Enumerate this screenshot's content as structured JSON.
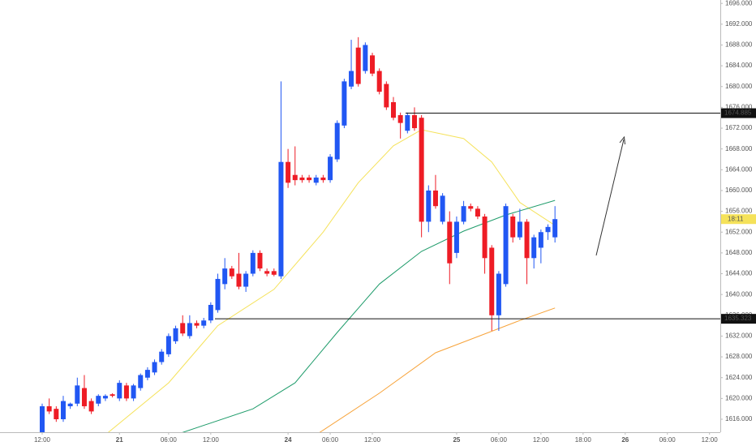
{
  "chart_data": {
    "type": "candlestick",
    "up_color": "#2157f3",
    "down_color": "#ee1c25",
    "open": [
      1612,
      1618.5,
      1618,
      1616,
      1618.5,
      1619,
      1622,
      1619.5,
      1619,
      1620,
      1620.8,
      1620,
      1622.5,
      1620,
      1622,
      1624,
      1625,
      1627,
      1628.5,
      1631,
      1634.5,
      1632,
      1634.5,
      1634,
      1635,
      1637,
      1642,
      1645,
      1644,
      1641.5,
      1644,
      1648,
      1644.5,
      1644.5,
      1643.5,
      1665.5,
      1663,
      1662.5,
      1662.5,
      1661.5,
      1662.5,
      1662,
      1666,
      1672.5,
      1680,
      1687.5,
      1683,
      1686,
      1683,
      1680.5,
      1677,
      1674.5,
      1671.5,
      1674.5,
      1674,
      1654,
      1660,
      1654,
      1654,
      1648,
      1654,
      1657,
      1656.5,
      1655,
      1649,
      1636,
      1642,
      1655,
      1651,
      1654,
      1647,
      1649,
      1652,
      1651
    ],
    "high": [
      1619,
      1620,
      1618.5,
      1620.5,
      1619.2,
      1624,
      1624.5,
      1620,
      1620.8,
      1620.8,
      1621,
      1623.5,
      1623,
      1622.8,
      1624.8,
      1626,
      1627.5,
      1629.5,
      1632.5,
      1634,
      1636,
      1636,
      1635,
      1635.5,
      1638.5,
      1644,
      1647,
      1645.5,
      1648,
      1644.5,
      1648.5,
      1648.5,
      1645,
      1645,
      1681,
      1668,
      1668.5,
      1663,
      1663,
      1663,
      1663,
      1667,
      1673.5,
      1681.5,
      1689,
      1689.5,
      1688.5,
      1686.5,
      1683.5,
      1681,
      1678,
      1675,
      1675,
      1676,
      1674.5,
      1661,
      1663,
      1659.5,
      1656,
      1655,
      1658,
      1657.5,
      1657,
      1655.5,
      1649.5,
      1644.5,
      1657.5,
      1655.5,
      1656.5,
      1654.5,
      1651.5,
      1652.5,
      1653.5,
      1657
    ],
    "low": [
      1611,
      1617,
      1615.5,
      1615.5,
      1618,
      1618.5,
      1618,
      1617,
      1618.5,
      1619.5,
      1620.2,
      1619.5,
      1619.5,
      1619.5,
      1621.5,
      1623.5,
      1624.5,
      1626.5,
      1628,
      1630.5,
      1632,
      1631.5,
      1633.5,
      1633.5,
      1634.5,
      1636.5,
      1641,
      1643,
      1641,
      1640.5,
      1643.5,
      1644.5,
      1643.5,
      1643.5,
      1643,
      1660.5,
      1661,
      1661.5,
      1661.5,
      1661,
      1661.5,
      1661.5,
      1665.5,
      1672,
      1679.5,
      1680,
      1682.5,
      1682,
      1678.5,
      1675.5,
      1673.5,
      1670,
      1671,
      1671.5,
      1651,
      1652,
      1656.5,
      1653.5,
      1642,
      1647,
      1653.5,
      1656,
      1654.5,
      1644,
      1633,
      1633,
      1641.5,
      1650,
      1650.5,
      1642,
      1645,
      1646,
      1650.5,
      1650
    ],
    "close": [
      1618.5,
      1617.5,
      1616,
      1619.5,
      1619,
      1622.5,
      1618.5,
      1617.5,
      1620.5,
      1620.5,
      1620.5,
      1623,
      1620,
      1622.5,
      1624.5,
      1625.5,
      1627,
      1629,
      1632,
      1633.5,
      1632.5,
      1634.5,
      1634,
      1635,
      1638,
      1643,
      1645,
      1643.5,
      1641.5,
      1644,
      1648,
      1645,
      1644,
      1643.8,
      1665.5,
      1661.5,
      1662,
      1662,
      1662,
      1662.5,
      1662,
      1666.5,
      1673,
      1681,
      1683,
      1680.5,
      1688,
      1682.5,
      1679,
      1676,
      1674,
      1673,
      1674.5,
      1672,
      1654,
      1660,
      1657,
      1659,
      1646,
      1654,
      1657,
      1656.5,
      1655,
      1647,
      1636,
      1644,
      1657,
      1651,
      1654,
      1647,
      1651,
      1652,
      1653,
      1654.5
    ],
    "series": [
      {
        "color": "#f5e25a",
        "x": [
          9,
          18,
          25,
          33,
          40,
          45,
          50,
          54,
          60,
          64,
          68,
          73
        ],
        "values": [
          1613,
          1623,
          1634,
          1641,
          1652,
          1661.5,
          1668.6,
          1671.7,
          1670,
          1665.5,
          1657.7,
          1653.3
        ]
      },
      {
        "color": "#1f9c6b",
        "x": [
          19,
          30,
          36,
          42,
          48,
          54,
          60,
          66,
          73
        ],
        "values": [
          1613,
          1618,
          1623,
          1632.7,
          1642,
          1648.3,
          1652.2,
          1655.3,
          1658.1
        ]
      },
      {
        "color": "#f7a33a",
        "x": [
          39,
          48,
          56,
          62,
          68,
          73
        ],
        "values": [
          1613,
          1621,
          1628.8,
          1631.9,
          1635,
          1637.4
        ]
      }
    ],
    "levels": [
      {
        "value": 1674.885,
        "label": "1674.885"
      },
      {
        "value": 1635.323,
        "label": "1635.323"
      }
    ],
    "countdown": "18:11",
    "ylim": [
      1616,
      1696
    ],
    "yticks": [
      {
        "value": 1616,
        "label": "1616.000"
      },
      {
        "value": 1620,
        "label": "1620.000"
      },
      {
        "value": 1624,
        "label": "1624.000"
      },
      {
        "value": 1628,
        "label": "1628.000"
      },
      {
        "value": 1632,
        "label": "1632.000"
      },
      {
        "value": 1636,
        "label": "1636.000"
      },
      {
        "value": 1640,
        "label": "1640.000"
      },
      {
        "value": 1644,
        "label": "1644.000"
      },
      {
        "value": 1648,
        "label": "1648.000"
      },
      {
        "value": 1652,
        "label": "1652.000"
      },
      {
        "value": 1656,
        "label": "1656.000"
      },
      {
        "value": 1660,
        "label": "1660.000"
      },
      {
        "value": 1664,
        "label": "1664.000"
      },
      {
        "value": 1668,
        "label": "1668.000"
      },
      {
        "value": 1672,
        "label": "1672.000"
      },
      {
        "value": 1676,
        "label": "1676.000"
      },
      {
        "value": 1680,
        "label": "1680.000"
      },
      {
        "value": 1684,
        "label": "1684.000"
      },
      {
        "value": 1688,
        "label": "1688.000"
      },
      {
        "value": 1692,
        "label": "1692.000"
      },
      {
        "value": 1696,
        "label": "1696.000"
      }
    ],
    "xticks": [
      {
        "value": 0,
        "label": "12:00"
      },
      {
        "value": 11,
        "label": "21"
      },
      {
        "value": 18,
        "label": "06:00"
      },
      {
        "value": 24,
        "label": "12:00"
      },
      {
        "value": 35,
        "label": "24"
      },
      {
        "value": 41,
        "label": "06:00"
      },
      {
        "value": 47,
        "label": "12:00"
      },
      {
        "value": 59,
        "label": "25"
      },
      {
        "value": 65,
        "label": "06:00"
      },
      {
        "value": 71,
        "label": "12:00"
      },
      {
        "value": 77,
        "label": "18:00"
      },
      {
        "value": 83,
        "label": "26"
      },
      {
        "value": 89,
        "label": "06:00"
      },
      {
        "value": 95,
        "label": "12:00"
      }
    ]
  }
}
